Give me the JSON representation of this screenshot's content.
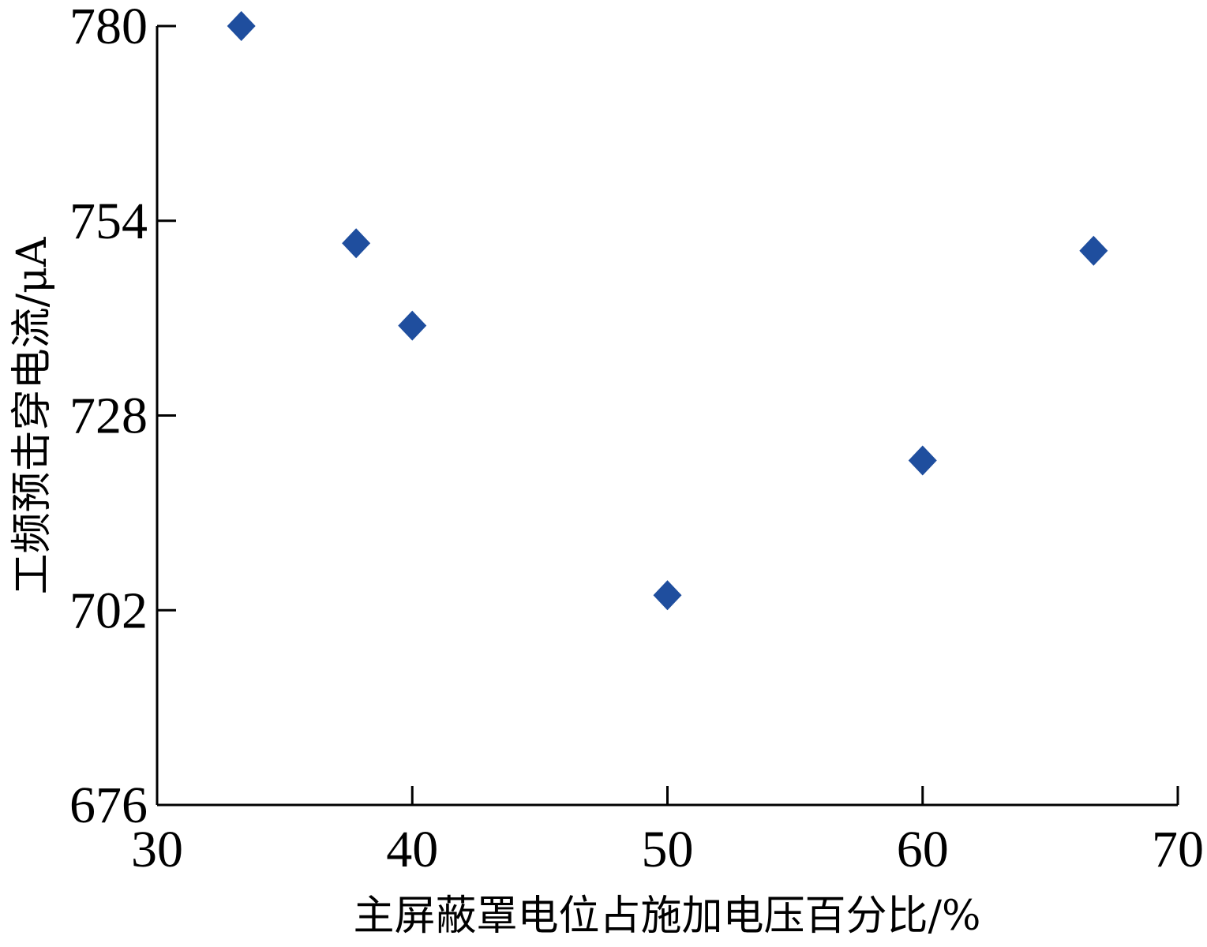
{
  "chart_data": {
    "type": "scatter",
    "title": "",
    "xlabel": "主屏蔽罩电位占施加电压百分比/%",
    "ylabel": "工频预击穿电流/μA",
    "xlim": [
      30,
      70
    ],
    "ylim": [
      676,
      780
    ],
    "xticks": [
      30,
      40,
      50,
      60,
      70
    ],
    "yticks": [
      676,
      702,
      728,
      754,
      780
    ],
    "grid": false,
    "legend": "none",
    "marker": "diamond",
    "colors": {
      "marker": "#1f4e9e",
      "axis": "#000000"
    },
    "series": [
      {
        "x": [
          33.3,
          37.8,
          40.0,
          50.0,
          60.0,
          66.7
        ],
        "y": [
          780,
          751,
          740,
          704,
          722,
          750
        ]
      }
    ]
  }
}
